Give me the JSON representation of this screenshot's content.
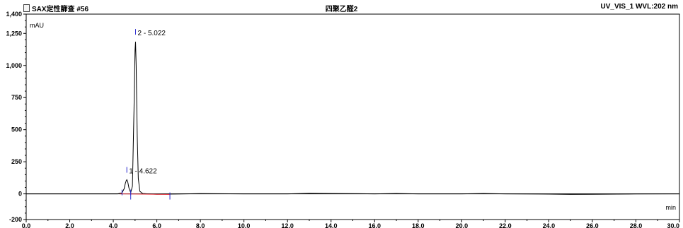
{
  "header": {
    "left": "SAX定性篩查 #56",
    "center": "四聚乙醛2",
    "right": "UV_VIS_1 WVL:202 nm"
  },
  "chart_data": {
    "type": "line",
    "title": "四聚乙醛2",
    "xlabel": "min",
    "ylabel": "mAU",
    "xlim": [
      0,
      30
    ],
    "ylim": [
      -200,
      1400
    ],
    "x_ticks": [
      0.0,
      2.0,
      4.0,
      6.0,
      8.0,
      10.0,
      12.0,
      14.0,
      16.0,
      18.0,
      20.0,
      22.0,
      24.0,
      26.0,
      28.0,
      30.0
    ],
    "x_tick_labels": [
      "0.0",
      "2.0",
      "4.0",
      "6.0",
      "8.0",
      "10.0",
      "12.0",
      "14.0",
      "16.0",
      "18.0",
      "20.0",
      "22.0",
      "24.0",
      "26.0",
      "28.0",
      "30.0"
    ],
    "y_ticks": [
      -200,
      0,
      250,
      500,
      750,
      1000,
      1250,
      1400
    ],
    "y_tick_labels": [
      "-200",
      "0",
      "250",
      "500",
      "750",
      "1,000",
      "1,250",
      "1,400"
    ],
    "series": [
      {
        "name": "UV_VIS_1",
        "color": "#000000",
        "x": [
          0.0,
          4.2,
          4.4,
          4.5,
          4.55,
          4.6,
          4.622,
          4.66,
          4.72,
          4.8,
          4.88,
          4.95,
          5.0,
          5.022,
          5.05,
          5.1,
          5.15,
          5.22,
          5.35,
          5.6,
          6.0,
          8.0,
          10.0,
          12.0,
          13.0,
          14.0,
          16.0,
          17.0,
          18.0,
          20.0,
          21.0,
          22.0,
          24.0,
          25.0,
          26.0,
          28.0,
          30.0
        ],
        "y": [
          0,
          0,
          8,
          40,
          80,
          105,
          110,
          95,
          45,
          10,
          60,
          650,
          1120,
          1185,
          1000,
          450,
          120,
          20,
          3,
          0,
          -3,
          2,
          0,
          0,
          4,
          3,
          0,
          3,
          0,
          0,
          3,
          0,
          -2,
          -4,
          -3,
          -1,
          0
        ]
      }
    ],
    "baseline": {
      "color": "#e0303a",
      "x": [
        4.3,
        6.6
      ],
      "y": [
        0,
        -5
      ]
    },
    "peaks": [
      {
        "label": "1 - 4.622",
        "x": 4.622,
        "y": 110,
        "start": 4.4,
        "end": 4.8
      },
      {
        "label": "2 - 5.022",
        "x": 5.022,
        "y": 1185,
        "start": 4.8,
        "end": 6.6
      }
    ]
  },
  "colors": {
    "trace": "#000000",
    "baseline": "#e0303a",
    "peak_marker": "#2a2ad0"
  }
}
